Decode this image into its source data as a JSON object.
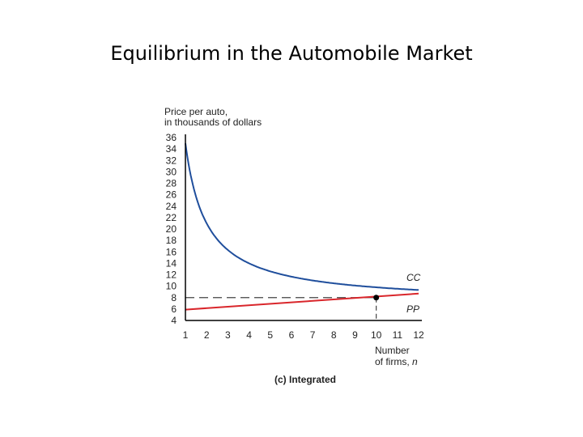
{
  "slide": {
    "title": "Equilibrium in the Automobile Market"
  },
  "chart_data": {
    "type": "line",
    "caption": "(c) Integrated",
    "ylabel": [
      "Price per auto,",
      "in thousands of dollars"
    ],
    "xlabel": [
      "Number",
      "of firms, n"
    ],
    "xlim": [
      1,
      12
    ],
    "ylim": [
      4,
      36
    ],
    "x_ticks": [
      1,
      2,
      3,
      4,
      5,
      6,
      7,
      8,
      9,
      10,
      11,
      12
    ],
    "y_ticks": [
      4,
      6,
      8,
      10,
      12,
      14,
      16,
      18,
      20,
      22,
      24,
      26,
      28,
      30,
      32,
      34,
      36
    ],
    "grid": false,
    "series": [
      {
        "name": "CC",
        "color": "#1f4e9c",
        "x": [
          1,
          1.25,
          1.5,
          2,
          2.5,
          3,
          3.5,
          4,
          4.5,
          5,
          6,
          7,
          8,
          9,
          10,
          11,
          12
        ],
        "y": [
          35,
          28.6,
          24.3,
          18.9,
          15.7,
          13.6,
          12.1,
          11.0,
          10.2,
          9.8,
          9.0,
          8.6,
          8.4,
          8.2,
          8.0,
          7.8,
          7.7
        ]
      },
      {
        "name": "PP",
        "color": "#d9262b",
        "x": [
          1,
          12
        ],
        "y": [
          5.9,
          8.7
        ]
      }
    ],
    "equilibrium": {
      "x": 10,
      "y": 8
    }
  }
}
